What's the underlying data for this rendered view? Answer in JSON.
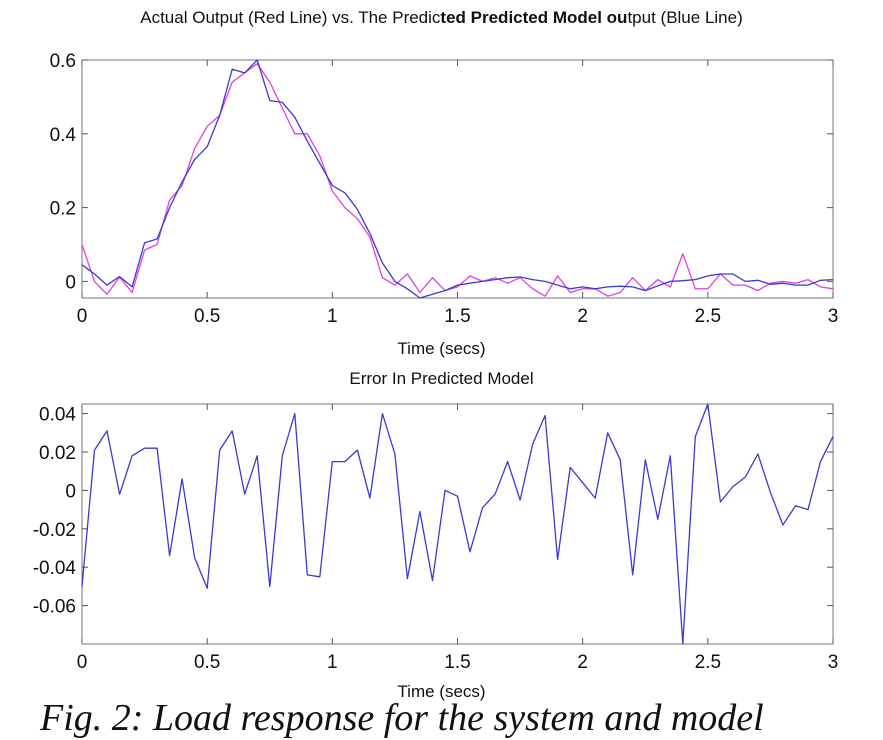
{
  "chart_data": [
    {
      "type": "line",
      "title_segments": [
        {
          "text": "Actual Output (Red Line) vs. The Predic",
          "bold": false
        },
        {
          "text": "ted Predicted Model ou",
          "bold": true
        },
        {
          "text": "tput (Blue Line)",
          "bold": false
        }
      ],
      "xlabel": "Time (secs)",
      "ylabel": "",
      "xlim": [
        0,
        3
      ],
      "ylim": [
        -0.045,
        0.6
      ],
      "xticks": [
        0,
        0.5,
        1,
        1.5,
        2,
        2.5,
        3
      ],
      "xtick_labels": [
        "0",
        "0.5",
        "1",
        "1.5",
        "2",
        "2.5",
        "3"
      ],
      "yticks": [
        0,
        0.2,
        0.4,
        0.6
      ],
      "ytick_labels": [
        "0",
        "0.2",
        "0.4",
        "0.6"
      ],
      "x_step": 0.05,
      "series": [
        {
          "name": "Actual Output",
          "color": "#e040e0",
          "values": [
            0.1,
            0.0,
            -0.035,
            0.012,
            -0.03,
            0.085,
            0.1,
            0.22,
            0.26,
            0.36,
            0.42,
            0.45,
            0.54,
            0.565,
            0.59,
            0.54,
            0.47,
            0.4,
            0.4,
            0.34,
            0.245,
            0.2,
            0.17,
            0.12,
            0.01,
            -0.01,
            0.02,
            -0.03,
            0.01,
            -0.025,
            -0.015,
            0.015,
            0.0,
            0.01,
            -0.005,
            0.01,
            -0.02,
            -0.04,
            0.015,
            -0.03,
            -0.02,
            -0.02,
            -0.04,
            -0.03,
            0.01,
            -0.025,
            0.005,
            -0.015,
            0.075,
            -0.02,
            -0.02,
            0.02,
            -0.01,
            -0.01,
            -0.025,
            -0.005,
            0.0,
            -0.005,
            0.005,
            -0.015,
            -0.02
          ]
        },
        {
          "name": "Predicted Model Output",
          "color": "#3a3ad0",
          "values": [
            0.045,
            0.02,
            -0.01,
            0.013,
            -0.015,
            0.105,
            0.115,
            0.2,
            0.27,
            0.33,
            0.365,
            0.45,
            0.575,
            0.565,
            0.6,
            0.49,
            0.485,
            0.445,
            0.38,
            0.32,
            0.26,
            0.24,
            0.195,
            0.13,
            0.05,
            0.0,
            -0.02,
            -0.045,
            -0.035,
            -0.025,
            -0.01,
            -0.005,
            0.0,
            0.005,
            0.01,
            0.012,
            0.005,
            0.0,
            -0.01,
            -0.02,
            -0.015,
            -0.02,
            -0.015,
            -0.013,
            -0.015,
            -0.025,
            -0.012,
            0.0,
            0.002,
            0.005,
            0.015,
            0.02,
            0.02,
            0.0,
            0.003,
            -0.008,
            -0.005,
            -0.01,
            -0.01,
            0.003,
            0.005
          ]
        }
      ]
    },
    {
      "type": "line",
      "title_segments": [
        {
          "text": "Error In Predicted Model",
          "bold": false
        }
      ],
      "xlabel": "Time (secs)",
      "ylabel": "",
      "xlim": [
        0,
        3
      ],
      "ylim": [
        -0.08,
        0.045
      ],
      "xticks": [
        0,
        0.5,
        1,
        1.5,
        2,
        2.5,
        3
      ],
      "xtick_labels": [
        "0",
        "0.5",
        "1",
        "1.5",
        "2",
        "2.5",
        "3"
      ],
      "yticks": [
        -0.06,
        -0.04,
        -0.02,
        0,
        0.02,
        0.04
      ],
      "ytick_labels": [
        "-0.06",
        "-0.04",
        "-0.02",
        "0",
        "0.02",
        "0.04"
      ],
      "x_step": 0.05,
      "series": [
        {
          "name": "Error",
          "color": "#3a3ad0",
          "values": [
            -0.05,
            0.021,
            0.031,
            -0.002,
            0.018,
            0.022,
            0.022,
            -0.034,
            0.006,
            -0.035,
            -0.051,
            0.021,
            0.031,
            -0.002,
            0.018,
            -0.05,
            0.018,
            0.04,
            -0.044,
            -0.045,
            0.015,
            0.015,
            0.021,
            -0.004,
            0.04,
            0.019,
            -0.046,
            -0.011,
            -0.047,
            0.0,
            -0.003,
            -0.032,
            -0.009,
            -0.002,
            0.015,
            -0.005,
            0.024,
            0.039,
            -0.036,
            0.012,
            0.004,
            -0.004,
            0.03,
            0.016,
            -0.044,
            0.016,
            -0.015,
            0.018,
            -0.08,
            0.028,
            0.045,
            -0.006,
            0.002,
            0.007,
            0.019,
            -0.001,
            -0.018,
            -0.008,
            -0.01,
            0.015,
            0.028
          ]
        }
      ]
    }
  ],
  "caption": "Fig. 2: Load response for the system and model"
}
